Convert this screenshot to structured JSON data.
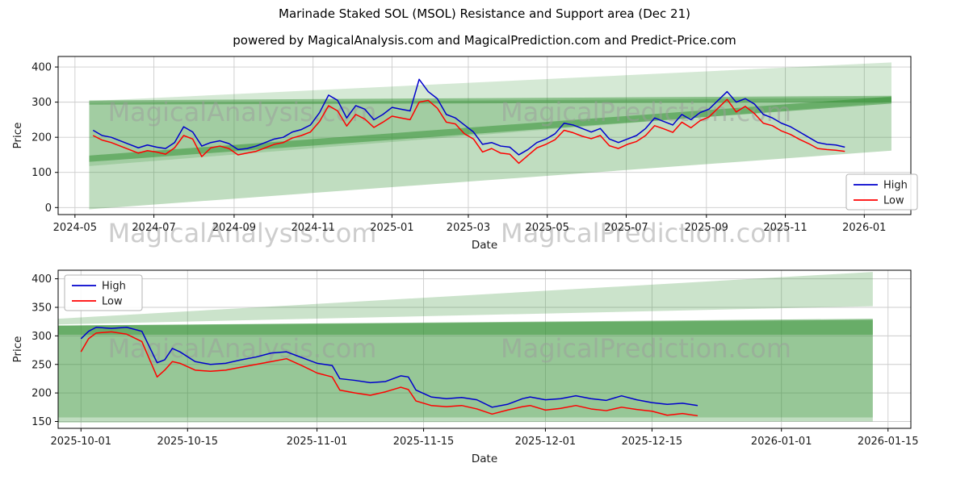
{
  "watermarks": [
    "MagicalAnalysis.com",
    "MagicalPrediction.com"
  ],
  "colors": {
    "high": "#0000cd",
    "low": "#ff0000",
    "band": "#2f8f2f",
    "grid": "#cccccc",
    "watermark": "#9b9b9b",
    "tick_text": "#1a1a1a"
  },
  "chart_data": [
    {
      "type": "line",
      "title": "Marinade Staked SOL (MSOL) Resistance and Support area (Dec 21)",
      "subtitle": "powered by MagicalAnalysis.com and MagicalPrediction.com and Predict-Price.com",
      "xlabel": "Date",
      "ylabel": "Price",
      "x_range": [
        "2024-04-18",
        "2026-02-06"
      ],
      "ylim": [
        -20,
        430
      ],
      "yticks": [
        0,
        100,
        200,
        300,
        400
      ],
      "xticks": [
        [
          "2024-05-01",
          "2024-05"
        ],
        [
          "2024-07-01",
          "2024-07"
        ],
        [
          "2024-09-01",
          "2024-09"
        ],
        [
          "2024-11-01",
          "2024-11"
        ],
        [
          "2025-01-01",
          "2025-01"
        ],
        [
          "2025-03-01",
          "2025-03"
        ],
        [
          "2025-05-01",
          "2025-05"
        ],
        [
          "2025-07-01",
          "2025-07"
        ],
        [
          "2025-09-01",
          "2025-09"
        ],
        [
          "2025-11-01",
          "2025-11"
        ],
        [
          "2026-01-01",
          "2026-01"
        ]
      ],
      "legend": {
        "entries": [
          "High",
          "Low"
        ],
        "position": "center right"
      },
      "dates": [
        "2024-05-15",
        "2024-05-22",
        "2024-05-29",
        "2024-06-05",
        "2024-06-12",
        "2024-06-19",
        "2024-06-26",
        "2024-07-03",
        "2024-07-10",
        "2024-07-17",
        "2024-07-24",
        "2024-07-31",
        "2024-08-07",
        "2024-08-14",
        "2024-08-21",
        "2024-08-28",
        "2024-09-04",
        "2024-09-11",
        "2024-09-18",
        "2024-09-25",
        "2024-10-02",
        "2024-10-09",
        "2024-10-16",
        "2024-10-23",
        "2024-10-30",
        "2024-11-06",
        "2024-11-13",
        "2024-11-20",
        "2024-11-27",
        "2024-12-04",
        "2024-12-11",
        "2024-12-18",
        "2024-12-25",
        "2025-01-01",
        "2025-01-08",
        "2025-01-15",
        "2025-01-22",
        "2025-01-29",
        "2025-02-05",
        "2025-02-12",
        "2025-02-19",
        "2025-02-26",
        "2025-03-05",
        "2025-03-12",
        "2025-03-19",
        "2025-03-26",
        "2025-04-02",
        "2025-04-09",
        "2025-04-16",
        "2025-04-23",
        "2025-04-30",
        "2025-05-07",
        "2025-05-14",
        "2025-05-21",
        "2025-05-28",
        "2025-06-04",
        "2025-06-11",
        "2025-06-18",
        "2025-06-25",
        "2025-07-02",
        "2025-07-09",
        "2025-07-16",
        "2025-07-23",
        "2025-07-30",
        "2025-08-06",
        "2025-08-13",
        "2025-08-20",
        "2025-08-27",
        "2025-09-03",
        "2025-09-10",
        "2025-09-17",
        "2025-09-24",
        "2025-10-01",
        "2025-10-08",
        "2025-10-15",
        "2025-10-22",
        "2025-10-29",
        "2025-11-05",
        "2025-11-12",
        "2025-11-19",
        "2025-11-26",
        "2025-12-03",
        "2025-12-10",
        "2025-12-17"
      ],
      "series": [
        {
          "name": "High",
          "color": "#0000cd",
          "values": [
            220,
            205,
            200,
            190,
            180,
            170,
            178,
            172,
            168,
            185,
            230,
            215,
            175,
            185,
            190,
            182,
            165,
            168,
            175,
            185,
            195,
            200,
            215,
            222,
            235,
            270,
            320,
            305,
            255,
            290,
            280,
            250,
            265,
            285,
            280,
            275,
            365,
            330,
            310,
            265,
            255,
            235,
            215,
            180,
            185,
            175,
            172,
            150,
            165,
            185,
            195,
            210,
            240,
            235,
            225,
            215,
            225,
            195,
            185,
            195,
            205,
            225,
            255,
            245,
            235,
            265,
            250,
            270,
            280,
            305,
            330,
            300,
            310,
            295,
            265,
            255,
            240,
            230,
            215,
            200,
            185,
            180,
            178,
            172
          ]
        },
        {
          "name": "Low",
          "color": "#ff0000",
          "values": [
            205,
            192,
            185,
            175,
            165,
            155,
            162,
            158,
            152,
            170,
            205,
            195,
            145,
            170,
            175,
            168,
            150,
            155,
            160,
            170,
            180,
            185,
            198,
            205,
            215,
            245,
            290,
            275,
            232,
            265,
            252,
            228,
            243,
            260,
            255,
            250,
            300,
            305,
            283,
            243,
            238,
            210,
            195,
            158,
            168,
            155,
            152,
            126,
            148,
            170,
            180,
            193,
            220,
            213,
            203,
            196,
            205,
            176,
            168,
            180,
            188,
            205,
            233,
            224,
            214,
            243,
            227,
            247,
            258,
            283,
            308,
            272,
            288,
            268,
            240,
            233,
            218,
            208,
            194,
            182,
            168,
            165,
            163,
            160
          ]
        }
      ],
      "bands": [
        {
          "x0": "2024-05-12",
          "x1": "2026-01-22",
          "y_bottom": [
            -5,
            162
          ],
          "y_top": [
            297,
            313
          ],
          "alpha": 0.3
        },
        {
          "x0": "2024-05-12",
          "x1": "2026-01-22",
          "y_bottom": [
            118,
            300
          ],
          "y_top": [
            303,
            413
          ],
          "alpha": 0.2
        },
        {
          "x0": "2024-05-12",
          "x1": "2026-01-22",
          "y_bottom": [
            130,
            296
          ],
          "y_top": [
            148,
            316
          ],
          "alpha": 0.5
        },
        {
          "x0": "2024-05-12",
          "x1": "2026-01-22",
          "y_bottom": [
            293,
            300
          ],
          "y_top": [
            305,
            318
          ],
          "alpha": 0.45
        }
      ]
    },
    {
      "type": "line",
      "title": "",
      "subtitle": "",
      "xlabel": "Date",
      "ylabel": "Price",
      "x_range": [
        "2025-09-28",
        "2026-01-18"
      ],
      "ylim": [
        138,
        415
      ],
      "yticks": [
        150,
        200,
        250,
        300,
        350,
        400
      ],
      "xticks": [
        [
          "2025-10-01",
          "2025-10-01"
        ],
        [
          "2025-10-15",
          "2025-10-15"
        ],
        [
          "2025-11-01",
          "2025-11-01"
        ],
        [
          "2025-11-15",
          "2025-11-15"
        ],
        [
          "2025-12-01",
          "2025-12-01"
        ],
        [
          "2025-12-15",
          "2025-12-15"
        ],
        [
          "2026-01-01",
          "2026-01-01"
        ],
        [
          "2026-01-15",
          "2026-01-15"
        ]
      ],
      "legend": {
        "entries": [
          "High",
          "Low"
        ],
        "position": "upper left"
      },
      "dates": [
        "2025-10-01",
        "2025-10-02",
        "2025-10-03",
        "2025-10-05",
        "2025-10-07",
        "2025-10-09",
        "2025-10-11",
        "2025-10-12",
        "2025-10-13",
        "2025-10-14",
        "2025-10-16",
        "2025-10-18",
        "2025-10-20",
        "2025-10-22",
        "2025-10-24",
        "2025-10-26",
        "2025-10-28",
        "2025-10-30",
        "2025-11-01",
        "2025-11-03",
        "2025-11-04",
        "2025-11-06",
        "2025-11-08",
        "2025-11-10",
        "2025-11-12",
        "2025-11-13",
        "2025-11-14",
        "2025-11-16",
        "2025-11-18",
        "2025-11-20",
        "2025-11-22",
        "2025-11-24",
        "2025-11-26",
        "2025-11-28",
        "2025-11-29",
        "2025-12-01",
        "2025-12-03",
        "2025-12-05",
        "2025-12-07",
        "2025-12-09",
        "2025-12-11",
        "2025-12-13",
        "2025-12-15",
        "2025-12-17",
        "2025-12-19",
        "2025-12-21"
      ],
      "series": [
        {
          "name": "High",
          "color": "#0000cd",
          "values": [
            295,
            308,
            315,
            313,
            315,
            308,
            253,
            258,
            278,
            272,
            255,
            250,
            252,
            258,
            263,
            270,
            272,
            262,
            252,
            248,
            225,
            222,
            218,
            220,
            230,
            228,
            205,
            193,
            190,
            192,
            188,
            175,
            180,
            190,
            193,
            188,
            190,
            195,
            190,
            187,
            195,
            188,
            183,
            180,
            182,
            178
          ]
        },
        {
          "name": "Low",
          "color": "#ff0000",
          "values": [
            272,
            295,
            305,
            307,
            303,
            290,
            228,
            240,
            255,
            252,
            240,
            238,
            240,
            245,
            250,
            255,
            260,
            248,
            235,
            228,
            205,
            200,
            196,
            202,
            210,
            206,
            186,
            178,
            176,
            178,
            172,
            163,
            170,
            176,
            178,
            170,
            173,
            178,
            172,
            169,
            175,
            171,
            168,
            161,
            164,
            160
          ]
        }
      ],
      "bands": [
        {
          "x0": "2025-09-28",
          "x1": "2026-01-13",
          "y_bottom": [
            157,
            157
          ],
          "y_top": [
            318,
            328
          ],
          "alpha": 0.5
        },
        {
          "x0": "2025-09-28",
          "x1": "2026-01-13",
          "y_bottom": [
            302,
            302
          ],
          "y_top": [
            318,
            330
          ],
          "alpha": 0.45
        },
        {
          "x0": "2025-09-28",
          "x1": "2026-01-13",
          "y_bottom": [
            320,
            352
          ],
          "y_top": [
            330,
            412
          ],
          "alpha": 0.25
        },
        {
          "x0": "2025-09-28",
          "x1": "2026-01-13",
          "y_bottom": [
            148,
            150
          ],
          "y_top": [
            157,
            157
          ],
          "alpha": 0.3
        }
      ]
    }
  ]
}
